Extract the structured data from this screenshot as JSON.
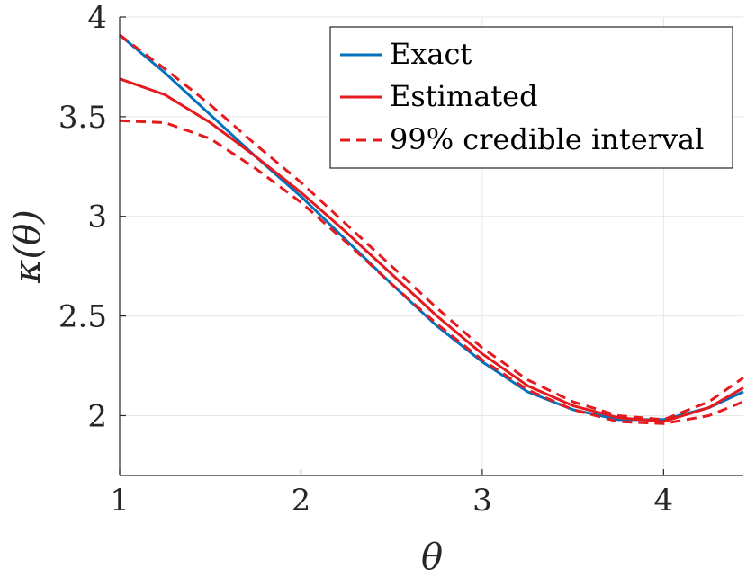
{
  "chart_data": {
    "type": "line",
    "xlabel": "θ",
    "ylabel": "κ(θ)",
    "xlim": [
      1,
      4.44
    ],
    "ylim": [
      1.7,
      4.0
    ],
    "xticks": [
      1,
      2,
      3,
      4
    ],
    "yticks": [
      2,
      2.5,
      3,
      3.5,
      4
    ],
    "xtick_labels": [
      "1",
      "2",
      "3",
      "4"
    ],
    "ytick_labels": [
      "2",
      "2.5",
      "3",
      "3.5",
      "4"
    ],
    "grid": true,
    "legend_position": "top-right",
    "series": [
      {
        "name": "Exact",
        "color": "#0072BD",
        "style": "solid",
        "x": [
          1.0,
          1.25,
          1.5,
          1.75,
          2.0,
          2.25,
          2.5,
          2.75,
          3.0,
          3.25,
          3.5,
          3.75,
          4.0,
          4.25,
          4.44
        ],
        "y": [
          3.91,
          3.72,
          3.51,
          3.3,
          3.1,
          2.88,
          2.66,
          2.45,
          2.27,
          2.12,
          2.03,
          1.98,
          1.98,
          2.04,
          2.12
        ]
      },
      {
        "name": "Estimated",
        "color": "#E5191E",
        "style": "solid",
        "x": [
          1.0,
          1.25,
          1.5,
          1.75,
          2.0,
          2.25,
          2.5,
          2.75,
          3.0,
          3.25,
          3.5,
          3.75,
          4.0,
          4.25,
          4.44
        ],
        "y": [
          3.69,
          3.61,
          3.47,
          3.3,
          3.12,
          2.92,
          2.71,
          2.5,
          2.31,
          2.15,
          2.05,
          1.99,
          1.97,
          2.04,
          2.14
        ]
      },
      {
        "name": "99% credible interval",
        "color": "#E5191E",
        "style": "dashed",
        "x": [
          1.0,
          1.25,
          1.5,
          1.75,
          2.0,
          2.25,
          2.5,
          2.75,
          3.0,
          3.25,
          3.5,
          3.75,
          4.0,
          4.25,
          4.44
        ],
        "y": [
          3.91,
          3.74,
          3.56,
          3.36,
          3.17,
          2.96,
          2.75,
          2.54,
          2.34,
          2.18,
          2.07,
          2.0,
          1.98,
          2.07,
          2.19
        ]
      },
      {
        "name": "",
        "color": "#E5191E",
        "style": "dashed",
        "x": [
          1.0,
          1.25,
          1.5,
          1.75,
          2.0,
          2.25,
          2.5,
          2.75,
          3.0,
          3.25,
          3.5,
          3.75,
          4.0,
          4.25,
          4.44
        ],
        "y": [
          3.48,
          3.47,
          3.39,
          3.24,
          3.07,
          2.87,
          2.66,
          2.46,
          2.28,
          2.13,
          2.03,
          1.97,
          1.96,
          2.0,
          2.07
        ]
      }
    ]
  }
}
